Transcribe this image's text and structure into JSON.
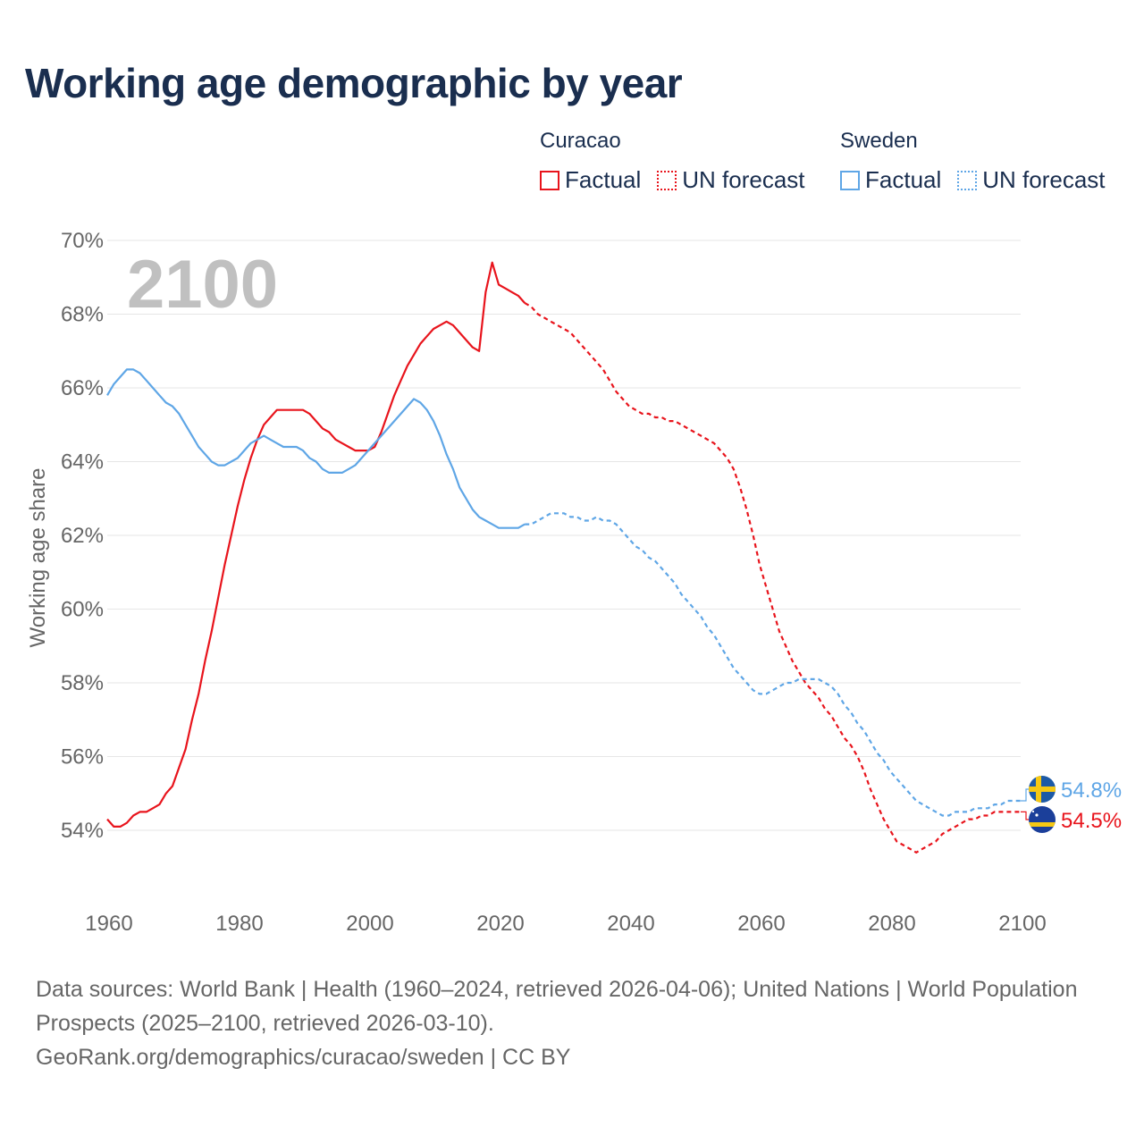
{
  "title": "Working age demographic by year",
  "legend": {
    "groups": [
      {
        "name": "Curacao",
        "color": "#e8141c",
        "factual_label": "Factual",
        "forecast_label": "UN forecast"
      },
      {
        "name": "Sweden",
        "color": "#5fa6e6",
        "factual_label": "Factual",
        "forecast_label": "UN forecast"
      }
    ]
  },
  "footer": {
    "sources": "Data sources: World Bank | Health (1960–2024, retrieved 2026-04-06); United Nations | World Population Prospects (2025–2100, retrieved 2026-03-10).",
    "url": "GeoRank.org/demographics/curacao/sweden | CC BY"
  },
  "chart_data": {
    "type": "line",
    "year_watermark": "2100",
    "ylabel": "Working age share",
    "xlabel": "",
    "xlim": [
      1960,
      2100
    ],
    "ylim": [
      52,
      70
    ],
    "x_ticks": [
      1960,
      1980,
      2000,
      2020,
      2040,
      2060,
      2080,
      2100
    ],
    "y_ticks": [
      54,
      56,
      58,
      60,
      62,
      64,
      66,
      68,
      70
    ],
    "y_tick_labels": [
      "54%",
      "56%",
      "58%",
      "60%",
      "62%",
      "64%",
      "66%",
      "68%",
      "70%"
    ],
    "factual_end_year": 2024,
    "series": [
      {
        "name": "Curacao",
        "color": "#e8141c",
        "end_label": "54.5%",
        "flag": "curacao-flag",
        "points": [
          [
            1960,
            54.3
          ],
          [
            1961,
            54.1
          ],
          [
            1962,
            54.1
          ],
          [
            1963,
            54.2
          ],
          [
            1964,
            54.4
          ],
          [
            1965,
            54.5
          ],
          [
            1966,
            54.5
          ],
          [
            1967,
            54.6
          ],
          [
            1968,
            54.7
          ],
          [
            1969,
            55.0
          ],
          [
            1970,
            55.2
          ],
          [
            1971,
            55.7
          ],
          [
            1972,
            56.2
          ],
          [
            1973,
            57.0
          ],
          [
            1974,
            57.7
          ],
          [
            1975,
            58.6
          ],
          [
            1976,
            59.4
          ],
          [
            1977,
            60.3
          ],
          [
            1978,
            61.2
          ],
          [
            1979,
            62.0
          ],
          [
            1980,
            62.8
          ],
          [
            1981,
            63.5
          ],
          [
            1982,
            64.1
          ],
          [
            1983,
            64.6
          ],
          [
            1984,
            65.0
          ],
          [
            1985,
            65.2
          ],
          [
            1986,
            65.4
          ],
          [
            1987,
            65.4
          ],
          [
            1988,
            65.4
          ],
          [
            1989,
            65.4
          ],
          [
            1990,
            65.4
          ],
          [
            1991,
            65.3
          ],
          [
            1992,
            65.1
          ],
          [
            1993,
            64.9
          ],
          [
            1994,
            64.8
          ],
          [
            1995,
            64.6
          ],
          [
            1996,
            64.5
          ],
          [
            1997,
            64.4
          ],
          [
            1998,
            64.3
          ],
          [
            1999,
            64.3
          ],
          [
            2000,
            64.3
          ],
          [
            2001,
            64.4
          ],
          [
            2002,
            64.8
          ],
          [
            2003,
            65.3
          ],
          [
            2004,
            65.8
          ],
          [
            2005,
            66.2
          ],
          [
            2006,
            66.6
          ],
          [
            2007,
            66.9
          ],
          [
            2008,
            67.2
          ],
          [
            2009,
            67.4
          ],
          [
            2010,
            67.6
          ],
          [
            2011,
            67.7
          ],
          [
            2012,
            67.8
          ],
          [
            2013,
            67.7
          ],
          [
            2014,
            67.5
          ],
          [
            2015,
            67.3
          ],
          [
            2016,
            67.1
          ],
          [
            2017,
            67.0
          ],
          [
            2018,
            68.6
          ],
          [
            2019,
            69.4
          ],
          [
            2020,
            68.8
          ],
          [
            2021,
            68.7
          ],
          [
            2022,
            68.6
          ],
          [
            2023,
            68.5
          ],
          [
            2024,
            68.3
          ],
          [
            2025,
            68.2
          ],
          [
            2026,
            68.0
          ],
          [
            2027,
            67.9
          ],
          [
            2028,
            67.8
          ],
          [
            2029,
            67.7
          ],
          [
            2030,
            67.6
          ],
          [
            2031,
            67.5
          ],
          [
            2032,
            67.3
          ],
          [
            2033,
            67.1
          ],
          [
            2034,
            66.9
          ],
          [
            2035,
            66.7
          ],
          [
            2036,
            66.5
          ],
          [
            2037,
            66.2
          ],
          [
            2038,
            65.9
          ],
          [
            2039,
            65.7
          ],
          [
            2040,
            65.5
          ],
          [
            2041,
            65.4
          ],
          [
            2042,
            65.3
          ],
          [
            2043,
            65.3
          ],
          [
            2044,
            65.2
          ],
          [
            2045,
            65.2
          ],
          [
            2046,
            65.1
          ],
          [
            2047,
            65.1
          ],
          [
            2048,
            65.0
          ],
          [
            2049,
            64.9
          ],
          [
            2050,
            64.8
          ],
          [
            2051,
            64.7
          ],
          [
            2052,
            64.6
          ],
          [
            2053,
            64.5
          ],
          [
            2054,
            64.3
          ],
          [
            2055,
            64.1
          ],
          [
            2056,
            63.8
          ],
          [
            2057,
            63.3
          ],
          [
            2058,
            62.7
          ],
          [
            2059,
            62.0
          ],
          [
            2060,
            61.2
          ],
          [
            2061,
            60.6
          ],
          [
            2062,
            60.0
          ],
          [
            2063,
            59.4
          ],
          [
            2064,
            59.0
          ],
          [
            2065,
            58.6
          ],
          [
            2066,
            58.3
          ],
          [
            2067,
            58.0
          ],
          [
            2068,
            57.8
          ],
          [
            2069,
            57.6
          ],
          [
            2070,
            57.3
          ],
          [
            2071,
            57.1
          ],
          [
            2072,
            56.8
          ],
          [
            2073,
            56.5
          ],
          [
            2074,
            56.3
          ],
          [
            2075,
            56.0
          ],
          [
            2076,
            55.6
          ],
          [
            2077,
            55.1
          ],
          [
            2078,
            54.7
          ],
          [
            2079,
            54.3
          ],
          [
            2080,
            54.0
          ],
          [
            2081,
            53.7
          ],
          [
            2082,
            53.6
          ],
          [
            2083,
            53.5
          ],
          [
            2084,
            53.4
          ],
          [
            2085,
            53.5
          ],
          [
            2086,
            53.6
          ],
          [
            2087,
            53.7
          ],
          [
            2088,
            53.9
          ],
          [
            2089,
            54.0
          ],
          [
            2090,
            54.1
          ],
          [
            2091,
            54.2
          ],
          [
            2092,
            54.3
          ],
          [
            2093,
            54.3
          ],
          [
            2094,
            54.4
          ],
          [
            2095,
            54.4
          ],
          [
            2096,
            54.5
          ],
          [
            2097,
            54.5
          ],
          [
            2098,
            54.5
          ],
          [
            2099,
            54.5
          ],
          [
            2100,
            54.5
          ]
        ]
      },
      {
        "name": "Sweden",
        "color": "#5fa6e6",
        "end_label": "54.8%",
        "flag": "sweden-flag",
        "points": [
          [
            1960,
            65.8
          ],
          [
            1961,
            66.1
          ],
          [
            1962,
            66.3
          ],
          [
            1963,
            66.5
          ],
          [
            1964,
            66.5
          ],
          [
            1965,
            66.4
          ],
          [
            1966,
            66.2
          ],
          [
            1967,
            66.0
          ],
          [
            1968,
            65.8
          ],
          [
            1969,
            65.6
          ],
          [
            1970,
            65.5
          ],
          [
            1971,
            65.3
          ],
          [
            1972,
            65.0
          ],
          [
            1973,
            64.7
          ],
          [
            1974,
            64.4
          ],
          [
            1975,
            64.2
          ],
          [
            1976,
            64.0
          ],
          [
            1977,
            63.9
          ],
          [
            1978,
            63.9
          ],
          [
            1979,
            64.0
          ],
          [
            1980,
            64.1
          ],
          [
            1981,
            64.3
          ],
          [
            1982,
            64.5
          ],
          [
            1983,
            64.6
          ],
          [
            1984,
            64.7
          ],
          [
            1985,
            64.6
          ],
          [
            1986,
            64.5
          ],
          [
            1987,
            64.4
          ],
          [
            1988,
            64.4
          ],
          [
            1989,
            64.4
          ],
          [
            1990,
            64.3
          ],
          [
            1991,
            64.1
          ],
          [
            1992,
            64.0
          ],
          [
            1993,
            63.8
          ],
          [
            1994,
            63.7
          ],
          [
            1995,
            63.7
          ],
          [
            1996,
            63.7
          ],
          [
            1997,
            63.8
          ],
          [
            1998,
            63.9
          ],
          [
            1999,
            64.1
          ],
          [
            2000,
            64.3
          ],
          [
            2001,
            64.5
          ],
          [
            2002,
            64.7
          ],
          [
            2003,
            64.9
          ],
          [
            2004,
            65.1
          ],
          [
            2005,
            65.3
          ],
          [
            2006,
            65.5
          ],
          [
            2007,
            65.7
          ],
          [
            2008,
            65.6
          ],
          [
            2009,
            65.4
          ],
          [
            2010,
            65.1
          ],
          [
            2011,
            64.7
          ],
          [
            2012,
            64.2
          ],
          [
            2013,
            63.8
          ],
          [
            2014,
            63.3
          ],
          [
            2015,
            63.0
          ],
          [
            2016,
            62.7
          ],
          [
            2017,
            62.5
          ],
          [
            2018,
            62.4
          ],
          [
            2019,
            62.3
          ],
          [
            2020,
            62.2
          ],
          [
            2021,
            62.2
          ],
          [
            2022,
            62.2
          ],
          [
            2023,
            62.2
          ],
          [
            2024,
            62.3
          ],
          [
            2025,
            62.3
          ],
          [
            2026,
            62.4
          ],
          [
            2027,
            62.5
          ],
          [
            2028,
            62.6
          ],
          [
            2029,
            62.6
          ],
          [
            2030,
            62.6
          ],
          [
            2031,
            62.5
          ],
          [
            2032,
            62.5
          ],
          [
            2033,
            62.4
          ],
          [
            2034,
            62.4
          ],
          [
            2035,
            62.5
          ],
          [
            2036,
            62.4
          ],
          [
            2037,
            62.4
          ],
          [
            2038,
            62.3
          ],
          [
            2039,
            62.1
          ],
          [
            2040,
            61.9
          ],
          [
            2041,
            61.7
          ],
          [
            2042,
            61.6
          ],
          [
            2043,
            61.4
          ],
          [
            2044,
            61.3
          ],
          [
            2045,
            61.1
          ],
          [
            2046,
            60.9
          ],
          [
            2047,
            60.7
          ],
          [
            2048,
            60.4
          ],
          [
            2049,
            60.2
          ],
          [
            2050,
            60.0
          ],
          [
            2051,
            59.8
          ],
          [
            2052,
            59.5
          ],
          [
            2053,
            59.3
          ],
          [
            2054,
            59.0
          ],
          [
            2055,
            58.7
          ],
          [
            2056,
            58.4
          ],
          [
            2057,
            58.2
          ],
          [
            2058,
            58.0
          ],
          [
            2059,
            57.8
          ],
          [
            2060,
            57.7
          ],
          [
            2061,
            57.7
          ],
          [
            2062,
            57.8
          ],
          [
            2063,
            57.9
          ],
          [
            2064,
            58.0
          ],
          [
            2065,
            58.0
          ],
          [
            2066,
            58.1
          ],
          [
            2067,
            58.1
          ],
          [
            2068,
            58.1
          ],
          [
            2069,
            58.1
          ],
          [
            2070,
            58.0
          ],
          [
            2071,
            57.9
          ],
          [
            2072,
            57.7
          ],
          [
            2073,
            57.4
          ],
          [
            2074,
            57.2
          ],
          [
            2075,
            56.9
          ],
          [
            2076,
            56.7
          ],
          [
            2077,
            56.4
          ],
          [
            2078,
            56.1
          ],
          [
            2079,
            55.9
          ],
          [
            2080,
            55.6
          ],
          [
            2081,
            55.4
          ],
          [
            2082,
            55.2
          ],
          [
            2083,
            55.0
          ],
          [
            2084,
            54.8
          ],
          [
            2085,
            54.7
          ],
          [
            2086,
            54.6
          ],
          [
            2087,
            54.5
          ],
          [
            2088,
            54.4
          ],
          [
            2089,
            54.4
          ],
          [
            2090,
            54.5
          ],
          [
            2091,
            54.5
          ],
          [
            2092,
            54.5
          ],
          [
            2093,
            54.6
          ],
          [
            2094,
            54.6
          ],
          [
            2095,
            54.6
          ],
          [
            2096,
            54.7
          ],
          [
            2097,
            54.7
          ],
          [
            2098,
            54.8
          ],
          [
            2099,
            54.8
          ],
          [
            2100,
            54.8
          ]
        ]
      }
    ]
  }
}
